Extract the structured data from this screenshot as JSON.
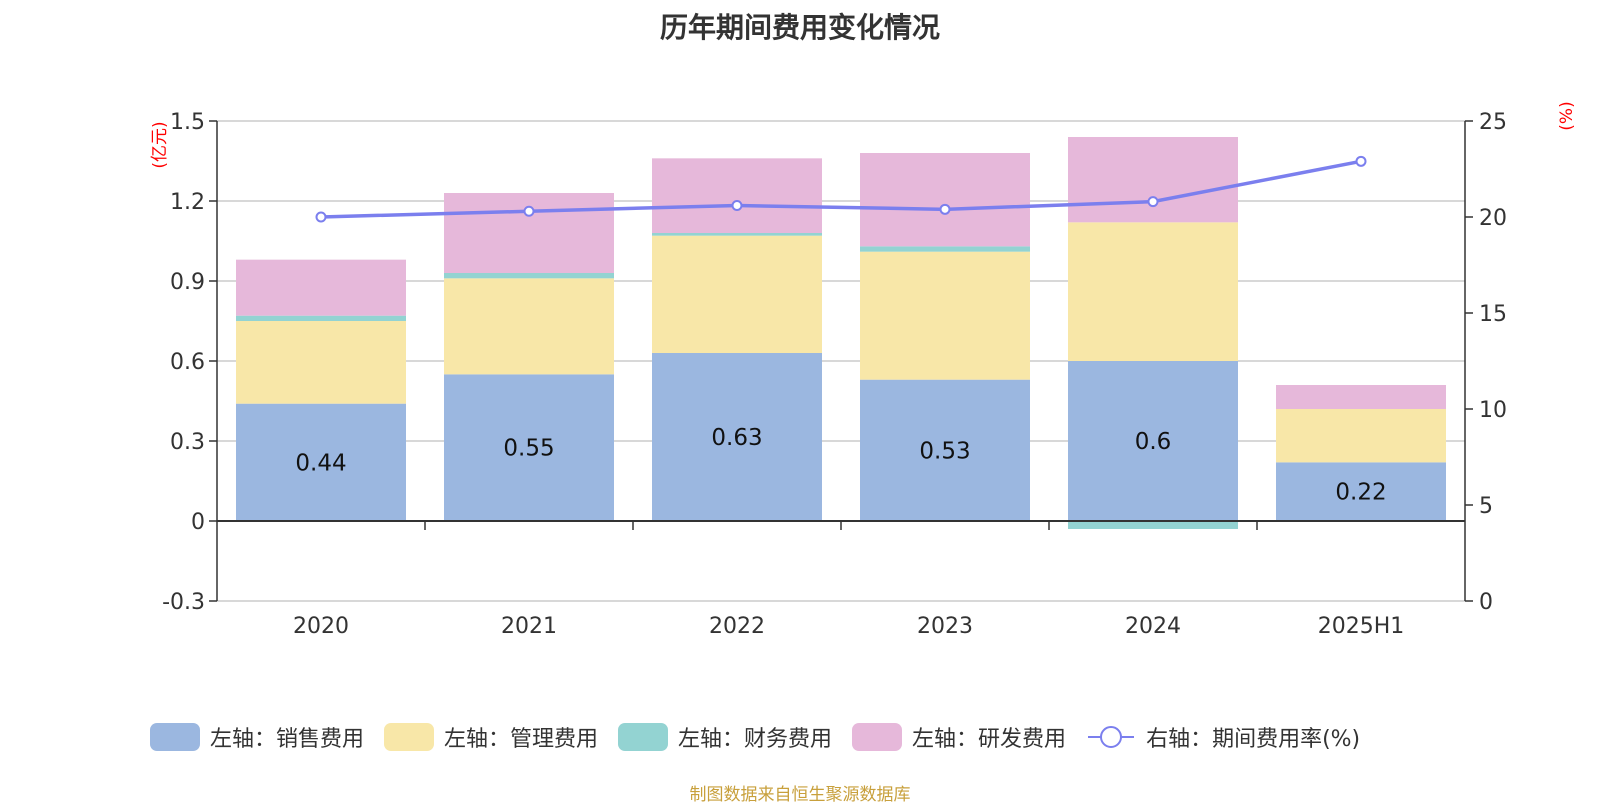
{
  "title": "历年期间费用变化情况",
  "source": "制图数据来自恒生聚源数据库",
  "chart_data": {
    "type": "bar",
    "stacked": true,
    "categories": [
      "2020",
      "2021",
      "2022",
      "2023",
      "2024",
      "2025H1"
    ],
    "left_axis": {
      "unit": "(亿元)",
      "ylim": [
        -0.3,
        1.5
      ],
      "ticks": [
        "1.5",
        "1.2",
        "0.9",
        "0.6",
        "0.3",
        "0",
        "-0.3"
      ]
    },
    "right_axis": {
      "unit": "(%)",
      "ylim": [
        0,
        25
      ],
      "ticks": [
        "25",
        "20",
        "15",
        "10",
        "5",
        "0"
      ]
    },
    "series": [
      {
        "name": "左轴：销售费用",
        "axis": "left",
        "color": "#9bb7e0",
        "values": [
          0.44,
          0.55,
          0.63,
          0.53,
          0.6,
          0.22
        ],
        "labels": [
          "0.44",
          "0.55",
          "0.63",
          "0.53",
          "0.6",
          "0.22"
        ]
      },
      {
        "name": "左轴：管理费用",
        "axis": "left",
        "color": "#f8e7a8",
        "values": [
          0.31,
          0.36,
          0.44,
          0.48,
          0.52,
          0.2
        ]
      },
      {
        "name": "左轴：财务费用",
        "axis": "left",
        "color": "#93d3d2",
        "values": [
          0.02,
          0.02,
          0.01,
          0.02,
          -0.03,
          0.0
        ]
      },
      {
        "name": "左轴：研发费用",
        "axis": "left",
        "color": "#e6b8da",
        "values": [
          0.21,
          0.3,
          0.28,
          0.35,
          0.32,
          0.09
        ]
      },
      {
        "name": "右轴：期间费用率(%)",
        "axis": "right",
        "type": "line",
        "color": "#7b7fee",
        "values": [
          20.0,
          20.3,
          20.6,
          20.4,
          20.8,
          22.9
        ]
      }
    ],
    "grid": true,
    "legend_position": "bottom"
  }
}
